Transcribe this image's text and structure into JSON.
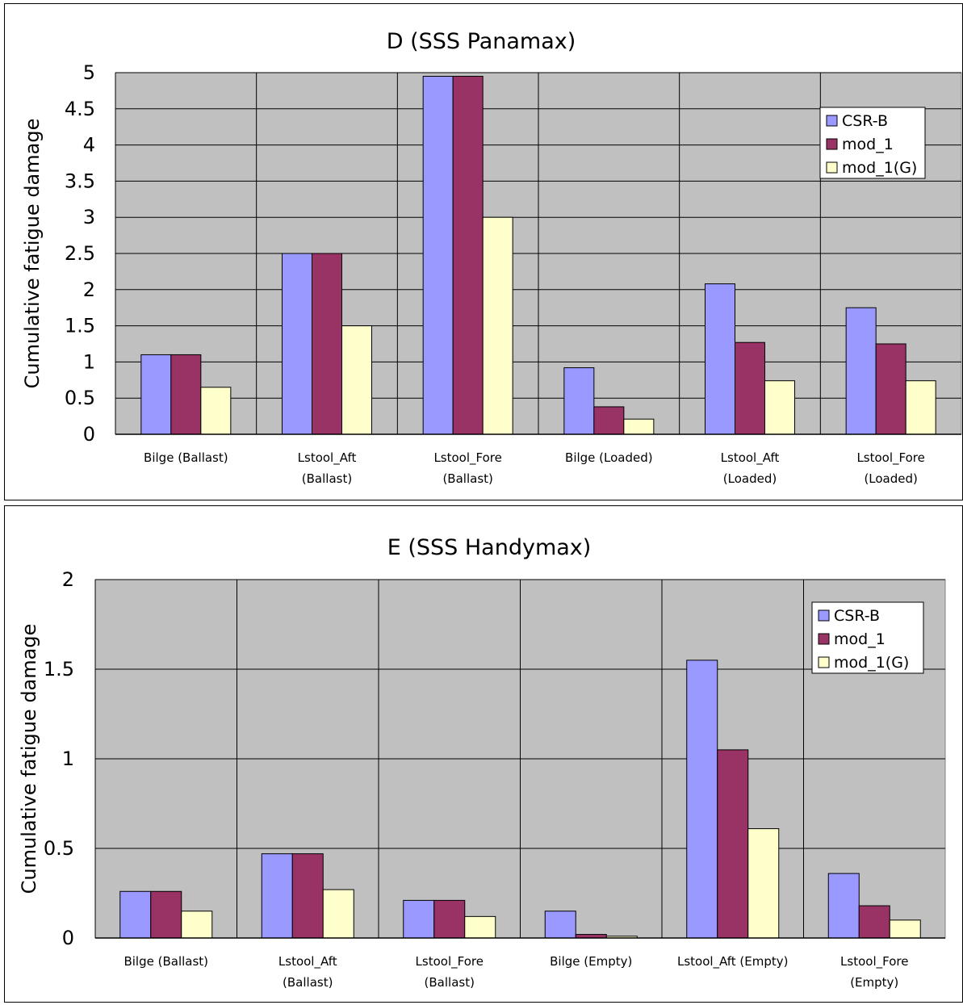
{
  "chart_data": [
    {
      "type": "bar",
      "title": "D (SSS Panamax)",
      "ylabel": "Cumulative fatigue damage",
      "xlabel": "",
      "ylim": [
        0,
        5
      ],
      "yticks": [
        0,
        0.5,
        1,
        1.5,
        2,
        2.5,
        3,
        3.5,
        4,
        4.5,
        5
      ],
      "ytick_labels": [
        "0",
        "0.5",
        "1",
        "1.5",
        "2",
        "2.5",
        "3",
        "3.5",
        "4",
        "4.5",
        "5"
      ],
      "categories": [
        [
          "Bilge (Ballast)"
        ],
        [
          "Lstool_Aft",
          "(Ballast)"
        ],
        [
          "Lstool_Fore",
          "(Ballast)"
        ],
        [
          "Bilge (Loaded)"
        ],
        [
          "Lstool_Aft",
          "(Loaded)"
        ],
        [
          "Lstool_Fore",
          "(Loaded)"
        ]
      ],
      "series": [
        {
          "name": "CSR-B",
          "color": "#9999ff",
          "values": [
            1.1,
            2.5,
            4.95,
            0.92,
            2.08,
            1.75
          ]
        },
        {
          "name": "mod_1",
          "color": "#993366",
          "values": [
            1.1,
            2.5,
            4.95,
            0.38,
            1.27,
            1.25
          ]
        },
        {
          "name": "mod_1(G)",
          "color": "#ffffcc",
          "values": [
            0.65,
            1.5,
            3.0,
            0.21,
            0.74,
            0.74
          ]
        }
      ],
      "grid": true,
      "plot_background": "#c0c0c0",
      "legend_position": "top-right"
    },
    {
      "type": "bar",
      "title": "E (SSS Handymax)",
      "ylabel": "Cumulative fatigue damage",
      "xlabel": "",
      "ylim": [
        0,
        2
      ],
      "yticks": [
        0,
        0.5,
        1,
        1.5,
        2
      ],
      "ytick_labels": [
        "0",
        "0.5",
        "1",
        "1.5",
        "2"
      ],
      "categories": [
        [
          "Bilge (Ballast)"
        ],
        [
          "Lstool_Aft",
          "(Ballast)"
        ],
        [
          "Lstool_Fore",
          "(Ballast)"
        ],
        [
          "Bilge (Empty)"
        ],
        [
          "Lstool_Aft (Empty)"
        ],
        [
          "Lstool_Fore",
          "(Empty)"
        ]
      ],
      "series": [
        {
          "name": "CSR-B",
          "color": "#9999ff",
          "values": [
            0.26,
            0.47,
            0.21,
            0.15,
            1.55,
            0.36
          ]
        },
        {
          "name": "mod_1",
          "color": "#993366",
          "values": [
            0.26,
            0.47,
            0.21,
            0.02,
            1.05,
            0.18
          ]
        },
        {
          "name": "mod_1(G)",
          "color": "#ffffcc",
          "values": [
            0.15,
            0.27,
            0.12,
            0.01,
            0.61,
            0.1
          ]
        }
      ],
      "grid": true,
      "plot_background": "#c0c0c0",
      "legend_position": "top-right"
    }
  ]
}
